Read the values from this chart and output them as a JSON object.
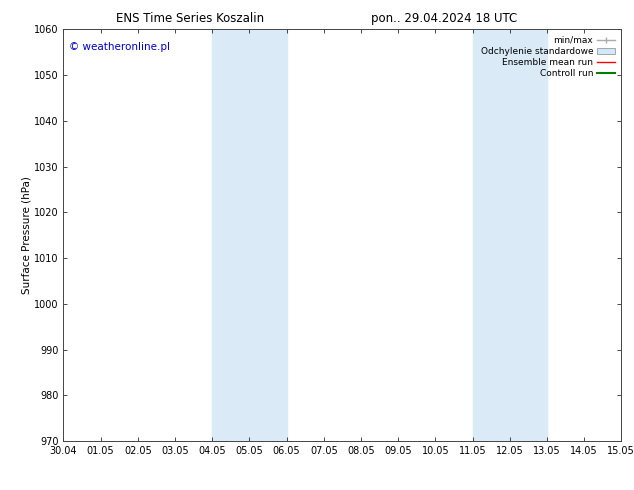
{
  "title_left": "ENS Time Series Koszalin",
  "title_right": "pon.. 29.04.2024 18 UTC",
  "ylabel": "Surface Pressure (hPa)",
  "ylim": [
    970,
    1060
  ],
  "yticks": [
    970,
    980,
    990,
    1000,
    1010,
    1020,
    1030,
    1040,
    1050,
    1060
  ],
  "xtick_labels": [
    "30.04",
    "01.05",
    "02.05",
    "03.05",
    "04.05",
    "05.05",
    "06.05",
    "07.05",
    "08.05",
    "09.05",
    "10.05",
    "11.05",
    "12.05",
    "13.05",
    "14.05",
    "15.05"
  ],
  "shaded_regions": [
    {
      "xstart": 4,
      "xend": 6
    },
    {
      "xstart": 11,
      "xend": 13
    }
  ],
  "shade_color": "#daeaf7",
  "watermark_text": "© weatheronline.pl",
  "watermark_color": "#0000cc",
  "legend_items": [
    {
      "label": "min/max",
      "color": "#aaaaaa",
      "linestyle": "-",
      "linewidth": 1.0
    },
    {
      "label": "Odchylenie standardowe",
      "color": "#d0e8f8",
      "linestyle": "-",
      "linewidth": 6
    },
    {
      "label": "Ensemble mean run",
      "color": "red",
      "linestyle": "-",
      "linewidth": 1.0
    },
    {
      "label": "Controll run",
      "color": "green",
      "linestyle": "-",
      "linewidth": 1.5
    }
  ],
  "background_color": "#ffffff",
  "title_fontsize": 8.5,
  "tick_fontsize": 7.0,
  "ylabel_fontsize": 7.5,
  "watermark_fontsize": 7.5,
  "legend_fontsize": 6.5
}
